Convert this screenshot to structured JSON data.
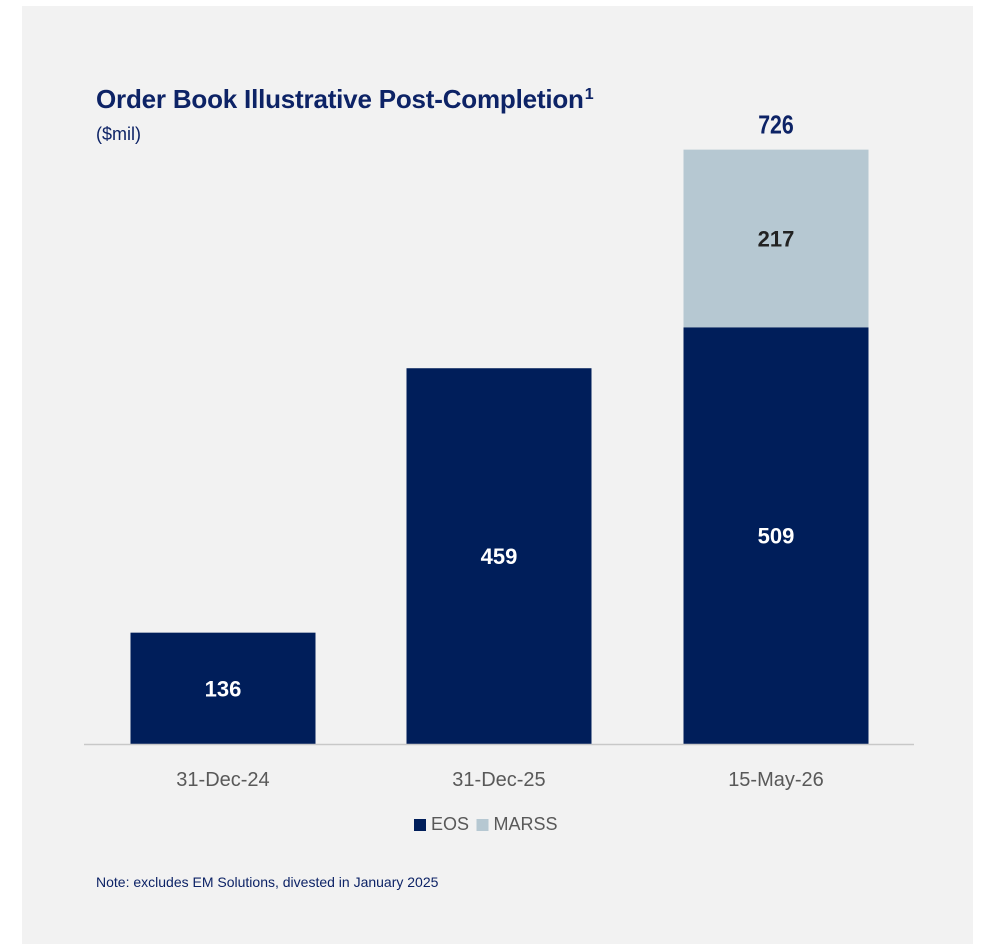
{
  "panel": {
    "title": "Order Book Illustrative Post-Completion",
    "title_superscript": "1",
    "subtitle": "($mil)",
    "note": "Note: excludes EM Solutions, divested in January 2025"
  },
  "colors": {
    "panel_background": "#f2f2f2",
    "title": "#0d2366",
    "axis_text": "#595959",
    "axis_line": "#c8c8c8"
  },
  "chart_data": {
    "type": "bar",
    "stacked": true,
    "categories": [
      "31-Dec-24",
      "31-Dec-25",
      "15-May-26"
    ],
    "series": [
      {
        "name": "EOS",
        "values": [
          136,
          459,
          509
        ],
        "color": "#001e5a",
        "label_color": "#ffffff"
      },
      {
        "name": "MARSS",
        "values": [
          null,
          null,
          217
        ],
        "color": "#b6c8d2",
        "label_color": "#222222"
      }
    ],
    "totals": [
      {
        "category": "15-May-26",
        "value": 726
      }
    ],
    "ylim": [
      0,
      750
    ],
    "grid": false,
    "legend": "bottom"
  }
}
